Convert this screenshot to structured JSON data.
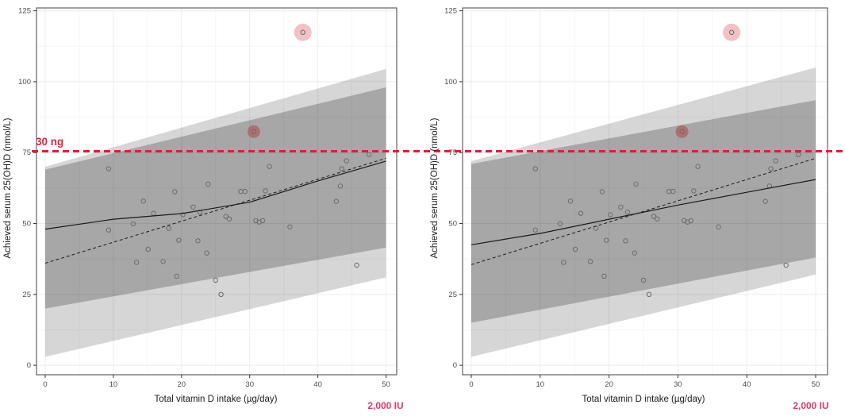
{
  "figure": {
    "background": "#ffffff",
    "reference_line": {
      "value": 75,
      "label": "30 ng",
      "color": "#dc2034",
      "style": "dashed"
    },
    "intake_annotation": {
      "label": "2,000 IU",
      "color": "#dd3a64",
      "at_x": 50
    },
    "colors": {
      "outer_band": "#d6d6d6",
      "inner_band": "#a8a8a8",
      "grid_major": "#ececec",
      "grid_minor": "#f6f6f6",
      "point_stroke": "#6b6b6b",
      "line": "#1a1a1a",
      "panel_border": "#404040",
      "tick_text": "#4d4d4d"
    }
  },
  "chart_data": [
    {
      "id": "a",
      "type": "scatter",
      "xlabel": "Total vitamin D intake (µg/day)",
      "ylabel": "Achieved serum 25(OH)D (nmol/L)",
      "xlim": [
        0,
        50
      ],
      "ylim": [
        0,
        125
      ],
      "xticks": [
        0,
        10,
        20,
        30,
        40,
        50
      ],
      "yticks": [
        0,
        25,
        50,
        75,
        100,
        125
      ],
      "grid": true,
      "legend": "none",
      "reference_line_y": 75,
      "reference_line_label": "30 ng",
      "x_annotation_label": "2,000 IU",
      "bands": {
        "outer": {
          "name": "outer-confidence-band",
          "fill": "rgba(0,0,0,0.16)",
          "x": [
            0,
            50
          ],
          "bottom": [
            3,
            31
          ],
          "top": [
            70,
            104.5
          ]
        },
        "inner": {
          "name": "inner-confidence-band",
          "fill": "rgba(0,0,0,0.22)",
          "x": [
            0,
            50
          ],
          "bottom": [
            20,
            41.5
          ],
          "top": [
            69,
            98
          ]
        }
      },
      "lines": {
        "solid": {
          "style": "solid",
          "points": [
            [
              0,
              48
            ],
            [
              10,
              51.5
            ],
            [
              20,
              53.5
            ],
            [
              30,
              57.5
            ],
            [
              40,
              65
            ],
            [
              50,
              72
            ]
          ]
        },
        "dashed": {
          "style": "dashed",
          "points": [
            [
              0,
              36
            ],
            [
              50,
              73
            ]
          ]
        }
      },
      "points": [
        [
          9.3,
          69.3
        ],
        [
          9.3,
          47.7
        ],
        [
          12.9,
          49.9
        ],
        [
          13.4,
          36.3
        ],
        [
          14.4,
          57.9
        ],
        [
          15.1,
          40.9
        ],
        [
          15.9,
          53.6
        ],
        [
          17.3,
          36.6
        ],
        [
          18.1,
          48.3
        ],
        [
          19.0,
          61.2
        ],
        [
          19.3,
          31.4
        ],
        [
          19.6,
          44.1
        ],
        [
          20.2,
          53.1
        ],
        [
          21.7,
          55.8
        ],
        [
          22.4,
          43.9
        ],
        [
          22.7,
          54.0
        ],
        [
          23.7,
          39.6
        ],
        [
          23.9,
          63.9
        ],
        [
          25.0,
          30.0
        ],
        [
          25.8,
          25.0
        ],
        [
          26.5,
          52.5
        ],
        [
          27.0,
          51.6
        ],
        [
          28.7,
          61.3
        ],
        [
          29.3,
          61.3
        ],
        [
          30.9,
          51.0
        ],
        [
          31.4,
          50.5
        ],
        [
          31.9,
          51.0
        ],
        [
          32.3,
          61.5
        ],
        [
          32.9,
          70.1
        ],
        [
          35.9,
          48.8
        ],
        [
          42.7,
          57.8
        ],
        [
          43.3,
          63.2
        ],
        [
          43.5,
          69.3
        ],
        [
          44.2,
          72.1
        ],
        [
          45.7,
          35.3
        ],
        [
          47.5,
          74.3
        ]
      ],
      "highlighted_points": [
        {
          "x": 30.6,
          "y": 82.4,
          "halo_r": 8,
          "halo_color": "rgba(180,60,55,0.5)"
        },
        {
          "x": 37.8,
          "y": 117.4,
          "halo_r": 11,
          "halo_color": "rgba(222,120,125,0.45)"
        }
      ]
    },
    {
      "id": "b",
      "type": "scatter",
      "xlabel": "Total vitamin D intake (µg/day)",
      "ylabel": "Achieved serum 25(OH)D (nmol/L)",
      "xlim": [
        0,
        50
      ],
      "ylim": [
        0,
        125
      ],
      "xticks": [
        0,
        10,
        20,
        30,
        40,
        50
      ],
      "yticks": [
        0,
        25,
        50,
        75,
        100,
        125
      ],
      "grid": true,
      "legend": "none",
      "reference_line_y": 75,
      "reference_line_label": "30 ng",
      "x_annotation_label": "2,000 IU",
      "bands": {
        "outer": {
          "name": "outer-confidence-band",
          "fill": "rgba(0,0,0,0.16)",
          "x": [
            0,
            50
          ],
          "bottom": [
            3,
            32
          ],
          "top": [
            72,
            105
          ]
        },
        "inner": {
          "name": "inner-confidence-band",
          "fill": "rgba(0,0,0,0.22)",
          "x": [
            0,
            50
          ],
          "bottom": [
            15,
            38
          ],
          "top": [
            71,
            93.5
          ]
        }
      },
      "lines": {
        "solid": {
          "style": "solid",
          "points": [
            [
              0,
              42.5
            ],
            [
              10,
              46.5
            ],
            [
              20,
              51.5
            ],
            [
              30,
              56.5
            ],
            [
              40,
              61
            ],
            [
              50,
              65.5
            ]
          ]
        },
        "dashed": {
          "style": "dashed",
          "points": [
            [
              0,
              35.5
            ],
            [
              50,
              73
            ]
          ]
        }
      },
      "points": [
        [
          9.3,
          69.3
        ],
        [
          9.3,
          47.7
        ],
        [
          12.9,
          49.9
        ],
        [
          13.4,
          36.3
        ],
        [
          14.4,
          57.9
        ],
        [
          15.1,
          40.9
        ],
        [
          15.9,
          53.6
        ],
        [
          17.3,
          36.6
        ],
        [
          18.1,
          48.3
        ],
        [
          19.0,
          61.2
        ],
        [
          19.3,
          31.4
        ],
        [
          19.6,
          44.1
        ],
        [
          20.2,
          53.1
        ],
        [
          21.7,
          55.8
        ],
        [
          22.4,
          43.9
        ],
        [
          22.7,
          54.0
        ],
        [
          23.7,
          39.6
        ],
        [
          23.9,
          63.9
        ],
        [
          25.0,
          30.0
        ],
        [
          25.8,
          25.0
        ],
        [
          26.5,
          52.5
        ],
        [
          27.0,
          51.6
        ],
        [
          28.7,
          61.3
        ],
        [
          29.3,
          61.3
        ],
        [
          30.9,
          51.0
        ],
        [
          31.4,
          50.5
        ],
        [
          31.9,
          51.0
        ],
        [
          32.3,
          61.5
        ],
        [
          32.9,
          70.1
        ],
        [
          35.9,
          48.8
        ],
        [
          42.7,
          57.8
        ],
        [
          43.3,
          63.2
        ],
        [
          43.5,
          69.3
        ],
        [
          44.2,
          72.1
        ],
        [
          45.7,
          35.3
        ],
        [
          47.5,
          74.3
        ]
      ],
      "highlighted_points": [
        {
          "x": 30.6,
          "y": 82.4,
          "halo_r": 8,
          "halo_color": "rgba(180,60,55,0.5)"
        },
        {
          "x": 37.8,
          "y": 117.4,
          "halo_r": 11,
          "halo_color": "rgba(222,120,125,0.45)"
        }
      ]
    }
  ]
}
